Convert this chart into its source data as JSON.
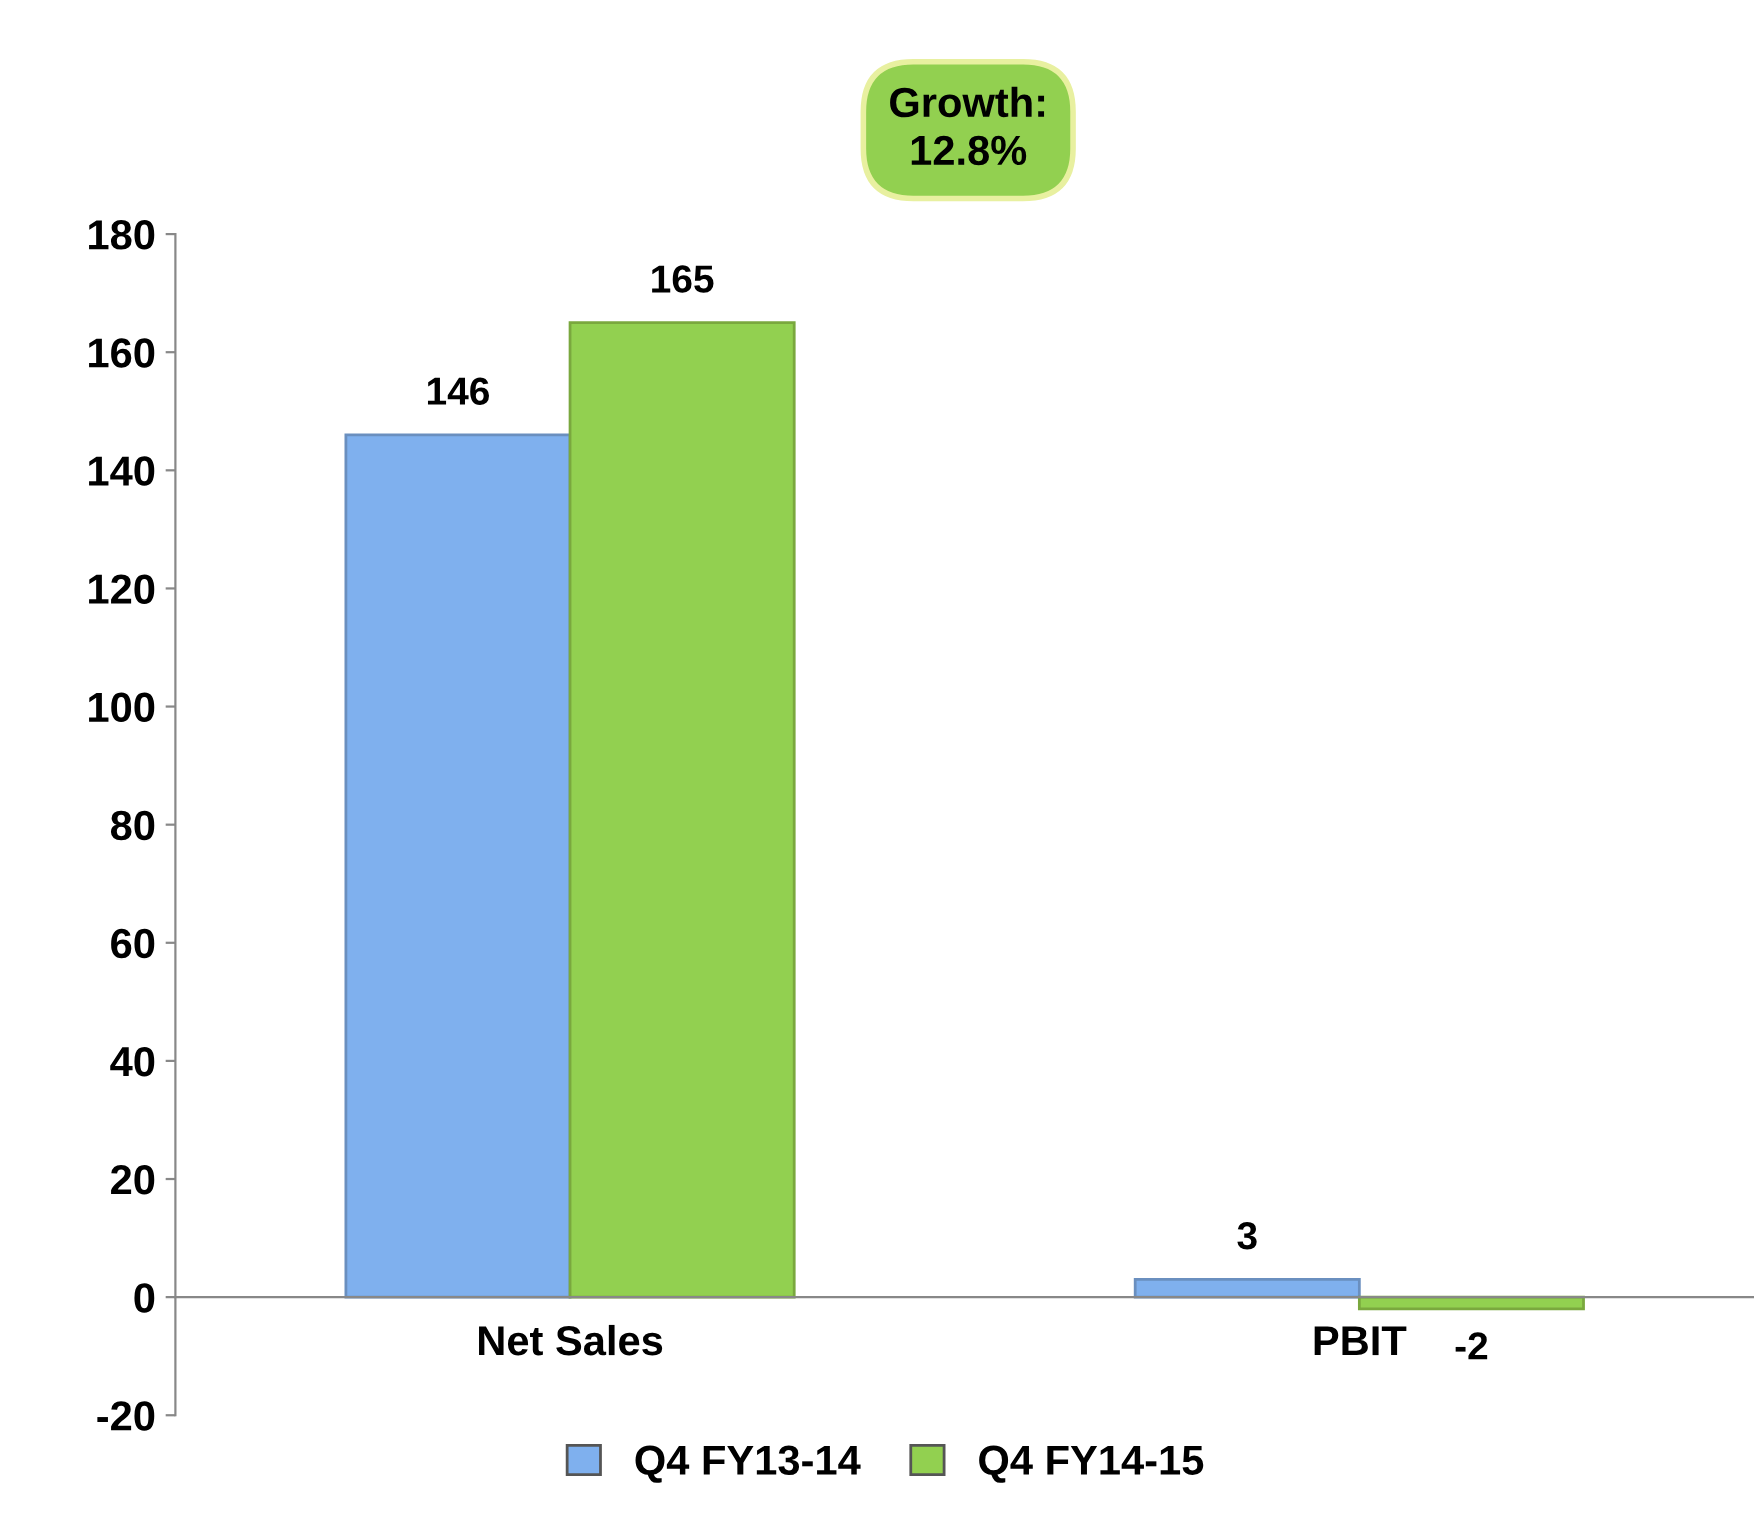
{
  "chart_data": {
    "type": "bar",
    "categories": [
      "Net Sales",
      "PBIT"
    ],
    "series": [
      {
        "name": "Q4 FY13-14",
        "color": "#7fb0ee",
        "values": [
          146,
          3
        ]
      },
      {
        "name": "Q4 FY14-15",
        "color": "#92d050",
        "values": [
          165,
          -2
        ]
      }
    ],
    "ylim": [
      -20,
      180
    ],
    "yticks": [
      -20,
      0,
      20,
      40,
      60,
      80,
      100,
      120,
      140,
      160,
      180
    ],
    "data_labels": true,
    "grid": false,
    "legend": "bottom",
    "annotations": [
      "Growth:\n12.8%"
    ]
  }
}
